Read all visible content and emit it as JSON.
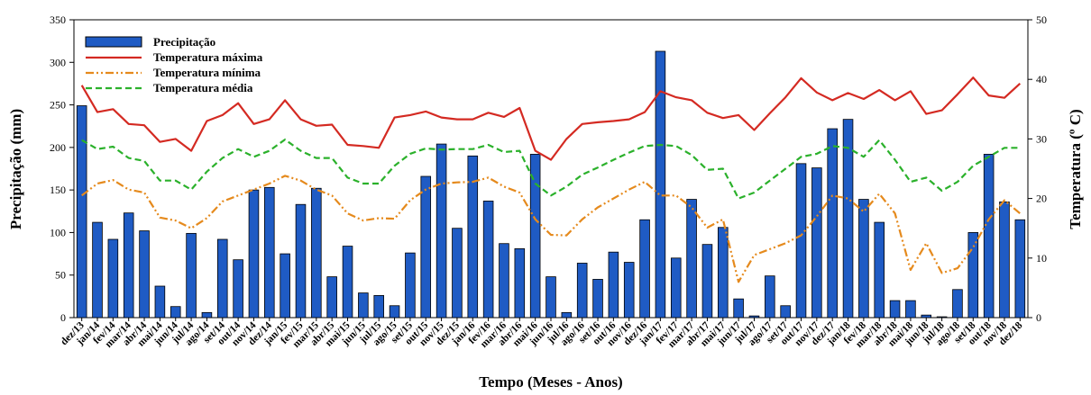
{
  "chart_data": {
    "type": "bar+line",
    "xlabel": "Tempo (Meses - Anos)",
    "ylabel_left": "Precipitação (mm)",
    "ylabel_right": "Temperatura (º C)",
    "ylim_left": [
      0,
      350
    ],
    "ylim_right": [
      0,
      50
    ],
    "yticks_left": [
      "0",
      "50",
      "100",
      "150",
      "200",
      "250",
      "300",
      "350"
    ],
    "yticks_right": [
      "0",
      "10",
      "20",
      "30",
      "40",
      "50"
    ],
    "grid": false,
    "legend_position": "top-left",
    "categories": [
      "dez/13",
      "jan/14",
      "fev/14",
      "mar/14",
      "abr/14",
      "mai/14",
      "jun/14",
      "jul/14",
      "ago/14",
      "set/14",
      "out/14",
      "nov/14",
      "dez/14",
      "jan/15",
      "fev/15",
      "mar/15",
      "abr/15",
      "mai/15",
      "jun/15",
      "jul/15",
      "ago/15",
      "set/15",
      "out/15",
      "nov/15",
      "dez/15",
      "jan/16",
      "fev/16",
      "mar/16",
      "abr/16",
      "mai/16",
      "jun/16",
      "jul/16",
      "ago/16",
      "set/16",
      "out/16",
      "nov/16",
      "dez/16",
      "jan/17",
      "fev/17",
      "mar/17",
      "abr/17",
      "mai/17",
      "jun/17",
      "jul/17",
      "ago/17",
      "set/17",
      "out/17",
      "nov/17",
      "dez/17",
      "jan/18",
      "fev/18",
      "mar/18",
      "abr/18",
      "mai/18",
      "jun/18",
      "jul/18",
      "ago/18",
      "set/18",
      "out/18",
      "nov/18",
      "dez/18"
    ],
    "series": [
      {
        "name": "Precipitação",
        "kind": "bar",
        "axis": "left",
        "color": "#1f5bc4",
        "values": [
          249,
          112,
          92,
          123,
          102,
          37,
          13,
          99,
          6,
          92,
          68,
          150,
          153,
          75,
          133,
          152,
          48,
          84,
          29,
          26,
          14,
          76,
          166,
          204,
          105,
          190,
          137,
          87,
          81,
          192,
          48,
          6,
          64,
          45,
          77,
          65,
          115,
          313,
          70,
          139,
          86,
          106,
          22,
          2,
          49,
          14,
          181,
          176,
          222,
          233,
          139,
          112,
          20,
          20,
          3,
          1,
          33,
          100,
          192,
          136,
          115
        ]
      },
      {
        "name": "Temperatura máxima",
        "kind": "line",
        "axis": "right",
        "color": "#d42a22",
        "dash": "solid",
        "values": [
          39,
          34.5,
          35,
          32.5,
          32.3,
          29.5,
          30,
          28,
          33,
          34,
          36,
          32.5,
          33.3,
          36.5,
          33.3,
          32.2,
          32.4,
          29,
          28.8,
          28.5,
          33.6,
          34,
          34.6,
          33.6,
          33.3,
          33.3,
          34.4,
          33.7,
          35.2,
          28,
          26.5,
          30,
          32.5,
          32.8,
          33,
          33.3,
          34.5,
          38,
          37,
          36.5,
          34.4,
          33.5,
          34,
          31.5,
          34.3,
          37,
          40.2,
          37.8,
          36.5,
          37.7,
          36.7,
          38.2,
          36.5,
          38,
          34.2,
          34.8,
          37.5,
          40.3,
          37.3,
          36.9,
          39.3
        ]
      },
      {
        "name": "Temperatura mínima",
        "kind": "line",
        "axis": "right",
        "color": "#e58a1d",
        "dash": "dashdotdot",
        "values": [
          20.5,
          22.5,
          23.1,
          21.5,
          21,
          16.8,
          16.3,
          15,
          16.7,
          19.5,
          20.5,
          21.5,
          22.5,
          23.8,
          23,
          21.5,
          20.5,
          17.5,
          16.3,
          16.7,
          16.6,
          19.7,
          21.5,
          22.5,
          22.7,
          22.8,
          23.5,
          22,
          21,
          16.5,
          13.9,
          13.8,
          16.5,
          18.5,
          20,
          21.5,
          22.8,
          20.5,
          20.5,
          18.5,
          15.1,
          16.5,
          6,
          10.5,
          11.5,
          12.5,
          13.8,
          17,
          20.5,
          20,
          17.8,
          20.8,
          17.5,
          8,
          12.5,
          7.5,
          8.3,
          11.8,
          16.5,
          19.7,
          17.5
        ]
      },
      {
        "name": "Temperatura média",
        "kind": "line",
        "axis": "right",
        "color": "#2bb12b",
        "dash": "dashed",
        "values": [
          29.8,
          28.3,
          28.7,
          26.8,
          26.3,
          23,
          23,
          21.5,
          24.5,
          26.8,
          28.3,
          27,
          28,
          29.9,
          28,
          26.8,
          26.8,
          23.5,
          22.5,
          22.5,
          25.5,
          27.5,
          28.4,
          28.2,
          28.3,
          28.3,
          29,
          27.8,
          28,
          22.5,
          20.5,
          22,
          24,
          25.2,
          26.5,
          27.7,
          28.8,
          29,
          28.8,
          27.3,
          24.8,
          25,
          20,
          21,
          23,
          25,
          27,
          27.5,
          28.8,
          28.5,
          27,
          29.8,
          26.5,
          22.8,
          23.5,
          21.3,
          22.8,
          25.5,
          27,
          28.5,
          28.5
        ]
      }
    ]
  }
}
